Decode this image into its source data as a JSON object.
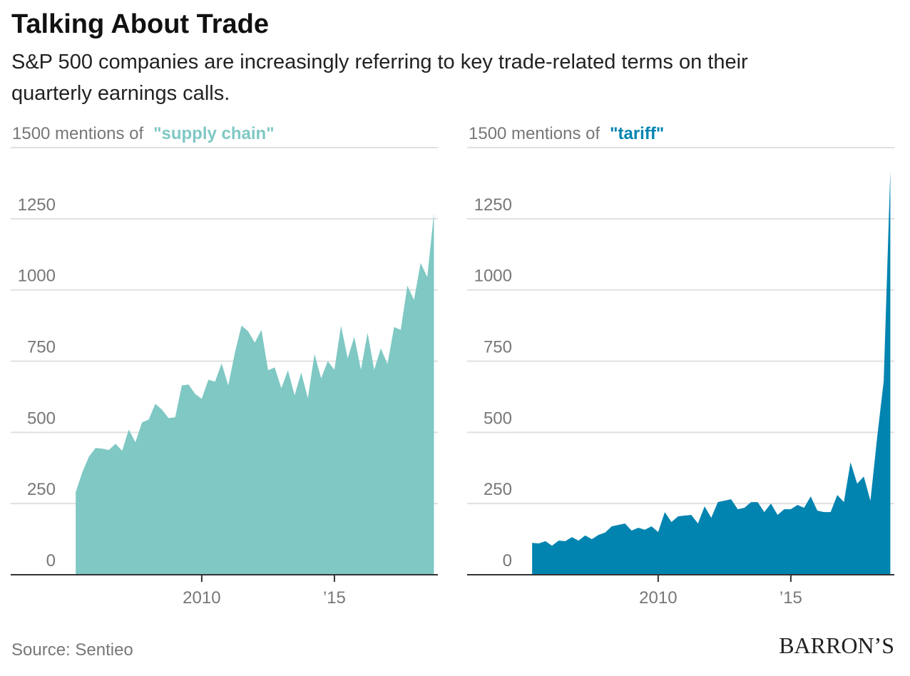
{
  "title": "Talking About Trade",
  "subtitle": "S&P 500 companies are increasingly referring to key trade-related terms on their quarterly earnings calls.",
  "source": "Source: Sentieo",
  "logo": "BARRON’S",
  "chart_data": [
    {
      "type": "area",
      "x": [
        2005.25,
        2005.5,
        2005.75,
        2006,
        2006.25,
        2006.5,
        2006.75,
        2007,
        2007.25,
        2007.5,
        2007.75,
        2008,
        2008.25,
        2008.5,
        2008.75,
        2009,
        2009.25,
        2009.5,
        2009.75,
        2010,
        2010.25,
        2010.5,
        2010.75,
        2011,
        2011.25,
        2011.5,
        2011.75,
        2012,
        2012.25,
        2012.5,
        2012.75,
        2013,
        2013.25,
        2013.5,
        2013.75,
        2014,
        2014.25,
        2014.5,
        2014.75,
        2015,
        2015.25,
        2015.5,
        2015.75,
        2016,
        2016.25,
        2016.5,
        2016.75,
        2017,
        2017.25,
        2017.5,
        2017.75,
        2018,
        2018.25,
        2018.5,
        2018.75
      ],
      "series": [
        {
          "name": "\"supply chain\"",
          "color": "#7fc8c4",
          "values": [
            290,
            360,
            415,
            445,
            443,
            438,
            460,
            435,
            510,
            465,
            535,
            545,
            600,
            580,
            550,
            553,
            665,
            668,
            635,
            618,
            685,
            678,
            742,
            665,
            780,
            875,
            855,
            815,
            860,
            718,
            728,
            655,
            718,
            630,
            710,
            620,
            775,
            690,
            750,
            720,
            875,
            760,
            835,
            720,
            850,
            720,
            795,
            740,
            870,
            860,
            1015,
            965,
            1095,
            1045,
            1270
          ]
        }
      ],
      "xlim": [
        2002.8,
        2018.9
      ],
      "xticks": [
        2010,
        {
          "value": 2015,
          "label": "’15"
        }
      ],
      "ylim": [
        0,
        1500
      ],
      "yticks": [
        0,
        250,
        500,
        750,
        1000,
        1250,
        {
          "value": 1500,
          "label": "1500 mentions of"
        }
      ],
      "grid": true
    },
    {
      "type": "area",
      "x": [
        2005.25,
        2005.5,
        2005.75,
        2006,
        2006.25,
        2006.5,
        2006.75,
        2007,
        2007.25,
        2007.5,
        2007.75,
        2008,
        2008.25,
        2008.5,
        2008.75,
        2009,
        2009.25,
        2009.5,
        2009.75,
        2010,
        2010.25,
        2010.5,
        2010.75,
        2011,
        2011.25,
        2011.5,
        2011.75,
        2012,
        2012.25,
        2012.5,
        2012.75,
        2013,
        2013.25,
        2013.5,
        2013.75,
        2014,
        2014.25,
        2014.5,
        2014.75,
        2015,
        2015.25,
        2015.5,
        2015.75,
        2016,
        2016.25,
        2016.5,
        2016.75,
        2017,
        2017.25,
        2017.5,
        2017.75,
        2018,
        2018.25,
        2018.5,
        2018.75
      ],
      "series": [
        {
          "name": "\"tariff\"",
          "color": "#0284b0",
          "values": [
            112,
            110,
            118,
            102,
            120,
            118,
            132,
            120,
            138,
            125,
            140,
            148,
            170,
            175,
            180,
            155,
            165,
            158,
            170,
            150,
            220,
            185,
            205,
            208,
            210,
            180,
            240,
            200,
            255,
            260,
            265,
            230,
            235,
            255,
            255,
            220,
            250,
            210,
            230,
            230,
            245,
            235,
            275,
            225,
            220,
            220,
            280,
            255,
            395,
            320,
            345,
            260,
            480,
            680,
            1420
          ]
        }
      ],
      "xlim": [
        2002.8,
        2018.9
      ],
      "xticks": [
        2010,
        {
          "value": 2015,
          "label": "’15"
        }
      ],
      "ylim": [
        0,
        1500
      ],
      "yticks": [
        0,
        250,
        500,
        750,
        1000,
        1250,
        {
          "value": 1500,
          "label": "1500 mentions of"
        }
      ],
      "grid": true
    }
  ]
}
